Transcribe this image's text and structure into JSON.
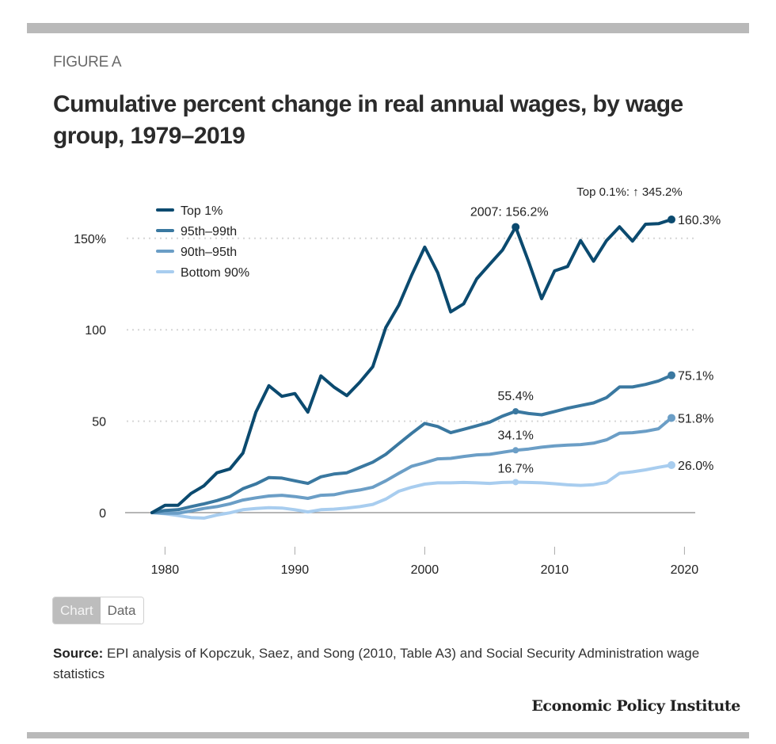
{
  "header": {
    "figure_label": "FIGURE A",
    "title": "Cumulative percent change in real annual wages, by wage group, 1979–2019"
  },
  "toggle": {
    "chart_label": "Chart",
    "data_label": "Data",
    "active": "Chart"
  },
  "footer": {
    "source_label": "Source:",
    "source_text": " EPI analysis of Kopczuk, Saez, and Song (2010, Table A3) and Social Security Administration wage statistics",
    "brand": "Economic Policy Institute"
  },
  "chart_data": {
    "type": "line",
    "title": "Cumulative percent change in real annual wages, by wage group, 1979–2019",
    "xlabel": "",
    "ylabel": "",
    "x": [
      1979,
      1980,
      1981,
      1982,
      1983,
      1984,
      1985,
      1986,
      1987,
      1988,
      1989,
      1990,
      1991,
      1992,
      1993,
      1994,
      1995,
      1996,
      1997,
      1998,
      1999,
      2000,
      2001,
      2002,
      2003,
      2004,
      2005,
      2006,
      2007,
      2008,
      2009,
      2010,
      2011,
      2012,
      2013,
      2014,
      2015,
      2016,
      2017,
      2018,
      2019
    ],
    "xlim": [
      1979,
      2021
    ],
    "ylim": [
      -10,
      170
    ],
    "x_ticks": [
      1980,
      1990,
      2000,
      2010,
      2020
    ],
    "x_tick_labels": [
      "1980",
      "1990",
      "2000",
      "2010",
      "2020"
    ],
    "y_ticks": [
      0,
      50,
      100,
      150
    ],
    "y_tick_labels": [
      "0",
      "50",
      "100",
      "150%"
    ],
    "grid": "horizontal-dotted",
    "legend_position": "top-left",
    "series": [
      {
        "name": "Top 1%",
        "color": "#0b4a6f",
        "values": [
          0,
          4,
          4,
          10.5,
          14.7,
          21.8,
          23.9,
          32.6,
          55,
          69.4,
          63.6,
          65.1,
          55,
          74.8,
          68.7,
          64,
          71.3,
          79.8,
          101.2,
          113.4,
          130,
          145.2,
          131.2,
          109.8,
          114.2,
          127.8,
          135.8,
          143.7,
          156.2,
          137.2,
          117,
          132.2,
          134.6,
          148.8,
          137.5,
          148.8,
          156.3,
          148.5,
          157.7,
          158,
          160.3
        ],
        "end_label": "160.3%",
        "peak_label": "2007: 156.2%"
      },
      {
        "name": "95th–99th",
        "color": "#3a78a0",
        "values": [
          0,
          1.2,
          1.6,
          3.3,
          4.8,
          6.6,
          8.8,
          13.1,
          15.7,
          19.2,
          18.9,
          17.4,
          16,
          19.6,
          21.1,
          21.8,
          24.7,
          27.6,
          31.9,
          37.7,
          43.4,
          48.8,
          47.1,
          43.7,
          45.6,
          47.5,
          49.5,
          52.8,
          55.4,
          54.2,
          53.5,
          55.3,
          57.1,
          58.6,
          60,
          62.9,
          68.7,
          68.7,
          70.1,
          72,
          75.1
        ],
        "end_label": "75.1%",
        "peak_label": "55.4%"
      },
      {
        "name": "90th–95th",
        "color": "#6b9ec6",
        "values": [
          0,
          -0.3,
          -0.3,
          0.9,
          2.3,
          3.3,
          4.8,
          6.9,
          8.1,
          9.1,
          9.5,
          8.8,
          7.8,
          9.5,
          9.8,
          11.3,
          12.4,
          13.9,
          17.4,
          21.5,
          25.4,
          27.3,
          29.4,
          29.7,
          30.7,
          31.6,
          31.9,
          33,
          34.1,
          34.8,
          35.8,
          36.5,
          36.9,
          37.2,
          38,
          39.8,
          43.4,
          43.7,
          44.5,
          45.9,
          51.8
        ],
        "end_label": "51.8%",
        "peak_label": "34.1%"
      },
      {
        "name": "Bottom 90%",
        "color": "#a8cdef",
        "values": [
          0,
          -0.6,
          -1.6,
          -2.7,
          -3,
          -1.3,
          -0.1,
          1.6,
          2.3,
          2.7,
          2.5,
          1.6,
          0.4,
          1.6,
          1.9,
          2.5,
          3.3,
          4.5,
          7.4,
          11.7,
          13.9,
          15.6,
          16.3,
          16.3,
          16.5,
          16.3,
          16,
          16.5,
          16.7,
          16.5,
          16.3,
          15.8,
          15.2,
          14.9,
          15.3,
          16.5,
          21.5,
          22.3,
          23.4,
          24.8,
          26.0
        ],
        "end_label": "26.0%",
        "peak_label": "16.7%"
      }
    ],
    "annotations": [
      {
        "text": "Top 0.1%: ↑ 345.2%",
        "x": 2014,
        "y": 170
      },
      {
        "text": "2007: 156.2%",
        "series": "Top 1%",
        "x": 2007,
        "y": 156.2
      },
      {
        "text": "55.4%",
        "series": "95th–99th",
        "x": 2007,
        "y": 55.4
      },
      {
        "text": "34.1%",
        "series": "90th–95th",
        "x": 2007,
        "y": 34.1
      },
      {
        "text": "16.7%",
        "series": "Bottom 90%",
        "x": 2007,
        "y": 16.7
      }
    ]
  }
}
